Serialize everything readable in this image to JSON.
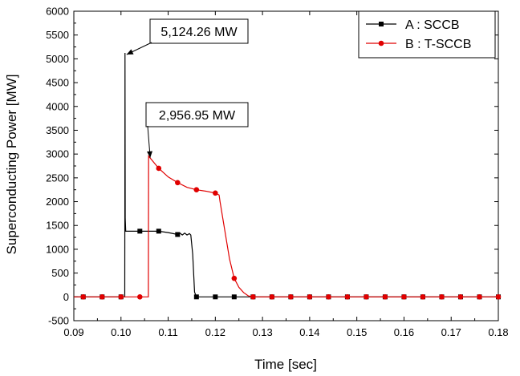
{
  "chart_data": {
    "type": "line",
    "xlabel": "Time [sec]",
    "ylabel": "Superconducting Power [MW]",
    "xlim": [
      0.09,
      0.18
    ],
    "ylim": [
      -500,
      6000
    ],
    "x_ticks": [
      "0.09",
      "0.10",
      "0.11",
      "0.12",
      "0.13",
      "0.14",
      "0.15",
      "0.16",
      "0.17",
      "0.18"
    ],
    "y_ticks": [
      "-500",
      "0",
      "500",
      "1000",
      "1500",
      "2000",
      "2500",
      "3000",
      "3500",
      "4000",
      "4500",
      "5000",
      "5500",
      "6000"
    ],
    "grid": false,
    "legend_position": "top-right",
    "series": [
      {
        "name": "A : SCCB",
        "color": "#000000",
        "marker": "square",
        "line": [
          [
            0.09,
            0
          ],
          [
            0.1008,
            0
          ],
          [
            0.10085,
            5124.26
          ],
          [
            0.1009,
            1650
          ],
          [
            0.101,
            1380
          ],
          [
            0.104,
            1380
          ],
          [
            0.108,
            1380
          ],
          [
            0.11,
            1350
          ],
          [
            0.112,
            1310
          ],
          [
            0.1125,
            1340
          ],
          [
            0.113,
            1300
          ],
          [
            0.1135,
            1340
          ],
          [
            0.114,
            1300
          ],
          [
            0.1145,
            1330
          ],
          [
            0.1148,
            1300
          ],
          [
            0.1152,
            900
          ],
          [
            0.1156,
            100
          ],
          [
            0.116,
            0
          ],
          [
            0.18,
            0
          ]
        ],
        "markers": [
          [
            0.092,
            0
          ],
          [
            0.096,
            0
          ],
          [
            0.1,
            0
          ],
          [
            0.104,
            1380
          ],
          [
            0.108,
            1380
          ],
          [
            0.112,
            1310
          ],
          [
            0.116,
            0
          ],
          [
            0.12,
            0
          ],
          [
            0.124,
            0
          ],
          [
            0.128,
            0
          ],
          [
            0.132,
            0
          ],
          [
            0.136,
            0
          ],
          [
            0.14,
            0
          ],
          [
            0.144,
            0
          ],
          [
            0.148,
            0
          ],
          [
            0.152,
            0
          ],
          [
            0.156,
            0
          ],
          [
            0.16,
            0
          ],
          [
            0.164,
            0
          ],
          [
            0.168,
            0
          ],
          [
            0.172,
            0
          ],
          [
            0.176,
            0
          ],
          [
            0.18,
            0
          ]
        ]
      },
      {
        "name": "B : T-SCCB",
        "color": "#e00000",
        "marker": "circle",
        "line": [
          [
            0.09,
            0
          ],
          [
            0.1058,
            0
          ],
          [
            0.10585,
            2956.95
          ],
          [
            0.108,
            2700
          ],
          [
            0.11,
            2520
          ],
          [
            0.112,
            2400
          ],
          [
            0.114,
            2300
          ],
          [
            0.116,
            2250
          ],
          [
            0.118,
            2220
          ],
          [
            0.12,
            2180
          ],
          [
            0.1208,
            2140
          ],
          [
            0.121,
            2000
          ],
          [
            0.122,
            1400
          ],
          [
            0.123,
            800
          ],
          [
            0.124,
            390
          ],
          [
            0.125,
            200
          ],
          [
            0.126,
            90
          ],
          [
            0.127,
            20
          ],
          [
            0.128,
            0
          ],
          [
            0.18,
            0
          ]
        ],
        "markers": [
          [
            0.092,
            0
          ],
          [
            0.096,
            0
          ],
          [
            0.1,
            0
          ],
          [
            0.104,
            0
          ],
          [
            0.108,
            2700
          ],
          [
            0.112,
            2400
          ],
          [
            0.116,
            2250
          ],
          [
            0.12,
            2180
          ],
          [
            0.124,
            390
          ],
          [
            0.128,
            0
          ],
          [
            0.132,
            0
          ],
          [
            0.136,
            0
          ],
          [
            0.14,
            0
          ],
          [
            0.144,
            0
          ],
          [
            0.148,
            0
          ],
          [
            0.152,
            0
          ],
          [
            0.156,
            0
          ],
          [
            0.16,
            0
          ],
          [
            0.164,
            0
          ],
          [
            0.168,
            0
          ],
          [
            0.172,
            0
          ],
          [
            0.176,
            0
          ],
          [
            0.18,
            0
          ]
        ]
      }
    ],
    "annotations": [
      {
        "text": "5,124.26 MW",
        "target": [
          0.10085,
          5124.26
        ]
      },
      {
        "text": "2,956.95 MW",
        "target": [
          0.10585,
          2956.95
        ]
      }
    ]
  }
}
